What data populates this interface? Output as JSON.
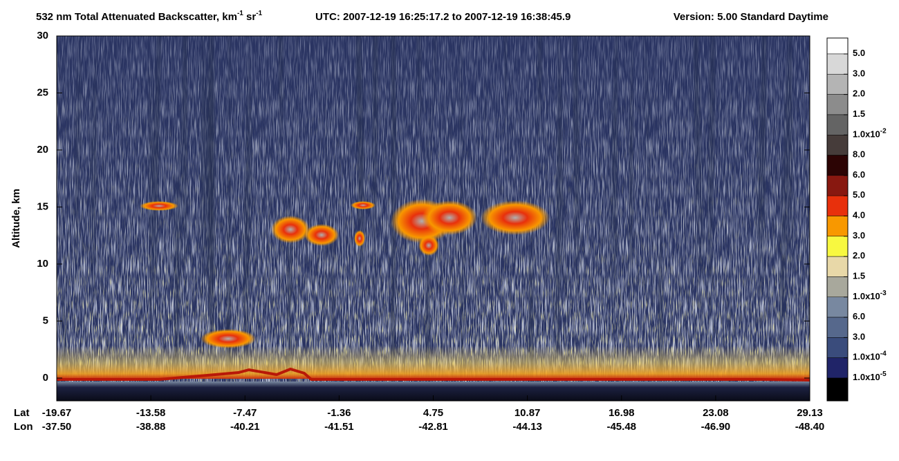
{
  "chart_data": {
    "type": "curtain",
    "title_parts": [
      {
        "text": "532 nm Total Attenuated Backscatter, km"
      },
      {
        "sup": "-1"
      },
      {
        "text": " sr"
      },
      {
        "sup": "-1"
      }
    ],
    "utc": "UTC:  2007-12-19 16:25:17.2  to  2007-12-19 16:38:45.9",
    "version": "Version: 5.00  Standard  Daytime",
    "ylabel": "Altitude, km",
    "ylim": [
      -2,
      30
    ],
    "yticks": [
      0,
      5,
      10,
      15,
      20,
      25,
      30
    ],
    "lat_label": "Lat",
    "lon_label": "Lon",
    "lat": [
      "-19.67",
      "-13.58",
      "-7.47",
      "-1.36",
      "4.75",
      "10.87",
      "16.98",
      "23.08",
      "29.13"
    ],
    "lon": [
      "-37.50",
      "-38.88",
      "-40.21",
      "-41.51",
      "-42.81",
      "-44.13",
      "-45.48",
      "-46.90",
      "-48.40"
    ],
    "colorbar": {
      "colors": [
        "#ffffff",
        "#d8d8d8",
        "#b4b4b4",
        "#8c8c8c",
        "#646464",
        "#463c3a",
        "#2c0404",
        "#881810",
        "#e8300c",
        "#f89800",
        "#f8f840",
        "#e8d8a8",
        "#a8a89c",
        "#7888a0",
        "#56688c",
        "#3a4c7c",
        "#202468",
        "#000000"
      ],
      "labels": [
        {
          "base": "5.0"
        },
        {
          "base": "3.0"
        },
        {
          "base": "2.0"
        },
        {
          "base": "1.5"
        },
        {
          "base": "1.0x10",
          "exp": "-2"
        },
        {
          "base": "8.0"
        },
        {
          "base": "6.0"
        },
        {
          "base": "5.0"
        },
        {
          "base": "4.0"
        },
        {
          "base": "3.0"
        },
        {
          "base": "2.0"
        },
        {
          "base": "1.5"
        },
        {
          "base": "1.0x10",
          "exp": "-3"
        },
        {
          "base": "6.0"
        },
        {
          "base": "3.0"
        },
        {
          "base": "1.0x10",
          "exp": "-4"
        },
        {
          "base": "1.0x10",
          "exp": "-5"
        }
      ]
    }
  }
}
